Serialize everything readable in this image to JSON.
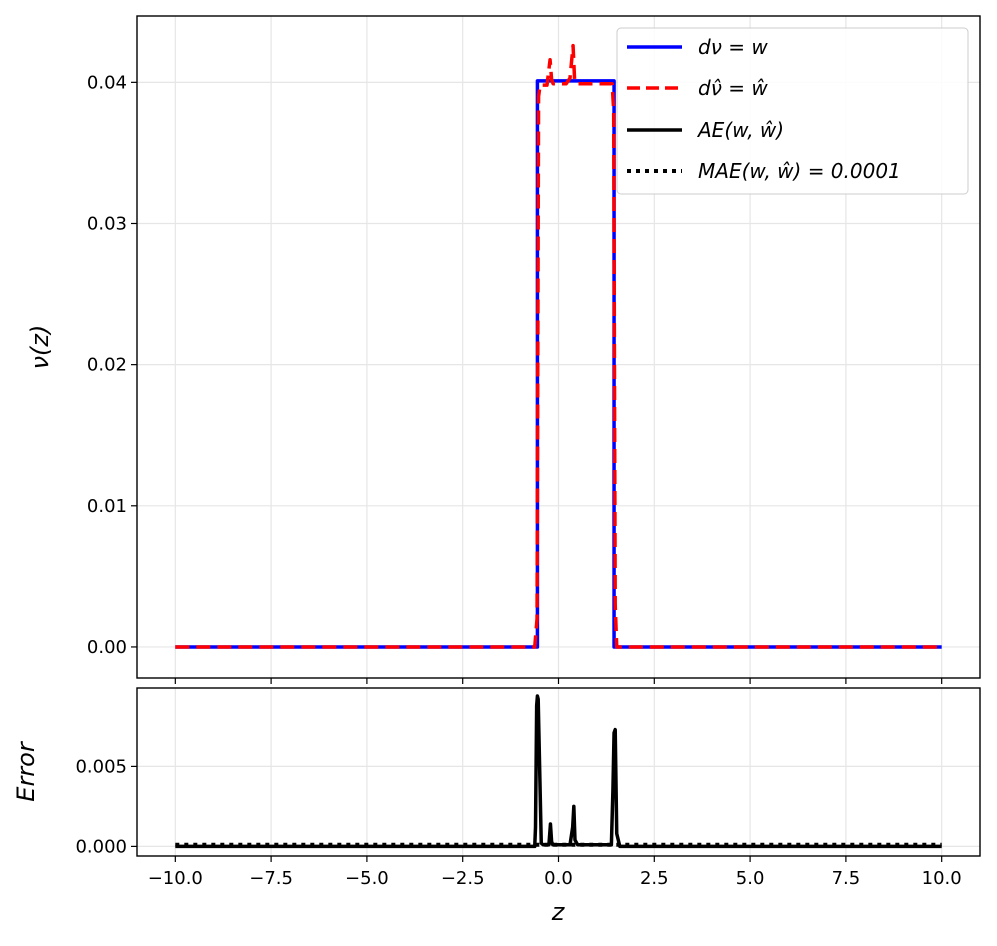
{
  "chart_data": [
    {
      "type": "line",
      "panel": "top",
      "title": "",
      "xlabel": "",
      "ylabel": "ν(z)",
      "xlim": [
        -11.0,
        11.0
      ],
      "ylim": [
        -0.0022,
        0.0447
      ],
      "grid": true,
      "legend_position": "top-right",
      "yticks": [
        0.0,
        0.01,
        0.02,
        0.03,
        0.04
      ],
      "ytick_labels": [
        "0.00",
        "0.01",
        "0.02",
        "0.03",
        "0.04"
      ],
      "series": [
        {
          "name": "dν = w",
          "color": "#0000ff",
          "style": "solid",
          "x": [
            -10.0,
            -0.55,
            -0.55,
            1.45,
            1.45,
            10.0
          ],
          "y": [
            0.0,
            0.0,
            0.0401,
            0.0401,
            0.0,
            0.0
          ]
        },
        {
          "name": "dν̂ = ŵ",
          "color": "#ff0000",
          "style": "dashed",
          "x": [
            -10.0,
            -0.62,
            -0.56,
            -0.52,
            -0.48,
            -0.3,
            -0.22,
            -0.18,
            -0.14,
            -0.08,
            0.2,
            0.3,
            0.38,
            0.42,
            0.48,
            0.6,
            1.4,
            1.44,
            1.48,
            1.52,
            10.0
          ],
          "y": [
            0.0,
            0.0,
            0.002,
            0.039,
            0.0398,
            0.0398,
            0.0416,
            0.0402,
            0.0399,
            0.0399,
            0.0399,
            0.0403,
            0.0426,
            0.0402,
            0.0399,
            0.0399,
            0.0399,
            0.038,
            0.003,
            0.0,
            0.0
          ]
        },
        {
          "name": "AE(w, ŵ)",
          "color": "#000000",
          "style": "solid",
          "in_legend_only": true
        },
        {
          "name": "MAE(w, ŵ) = 0.0001",
          "color": "#000000",
          "style": "dotted",
          "in_legend_only": true
        }
      ]
    },
    {
      "type": "line",
      "panel": "bottom",
      "title": "",
      "xlabel": "z",
      "ylabel": "Error",
      "xlim": [
        -11.0,
        11.0
      ],
      "ylim": [
        -0.0006,
        0.0099
      ],
      "grid": true,
      "xticks": [
        -10.0,
        -7.5,
        -5.0,
        -2.5,
        0.0,
        2.5,
        5.0,
        7.5,
        10.0
      ],
      "xtick_labels": [
        "−10.0",
        "−7.5",
        "−5.0",
        "−2.5",
        "0.0",
        "2.5",
        "5.0",
        "7.5",
        "10.0"
      ],
      "yticks": [
        0.0,
        0.005
      ],
      "ytick_labels": [
        "0.000",
        "0.005"
      ],
      "series": [
        {
          "name": "AE(w, ŵ)",
          "color": "#000000",
          "style": "solid",
          "x": [
            -10.0,
            -0.62,
            -0.6,
            -0.57,
            -0.55,
            -0.53,
            -0.5,
            -0.45,
            -0.4,
            -0.25,
            -0.21,
            -0.18,
            -0.15,
            0.3,
            0.37,
            0.4,
            0.43,
            0.5,
            1.38,
            1.42,
            1.45,
            1.48,
            1.52,
            1.6,
            10.0
          ],
          "y": [
            0.0,
            0.0,
            0.0012,
            0.0088,
            0.0094,
            0.0092,
            0.0058,
            0.0002,
            0.0001,
            0.0001,
            0.0014,
            0.0003,
            0.0001,
            0.0001,
            0.0012,
            0.0025,
            0.0004,
            0.0001,
            0.0001,
            0.0035,
            0.0071,
            0.0073,
            0.0008,
            0.0,
            0.0
          ]
        },
        {
          "name": "MAE(w, ŵ) = 0.0001",
          "color": "#000000",
          "style": "dotted",
          "x": [
            -10.0,
            10.0
          ],
          "y": [
            0.0001,
            0.0001
          ]
        }
      ]
    }
  ]
}
